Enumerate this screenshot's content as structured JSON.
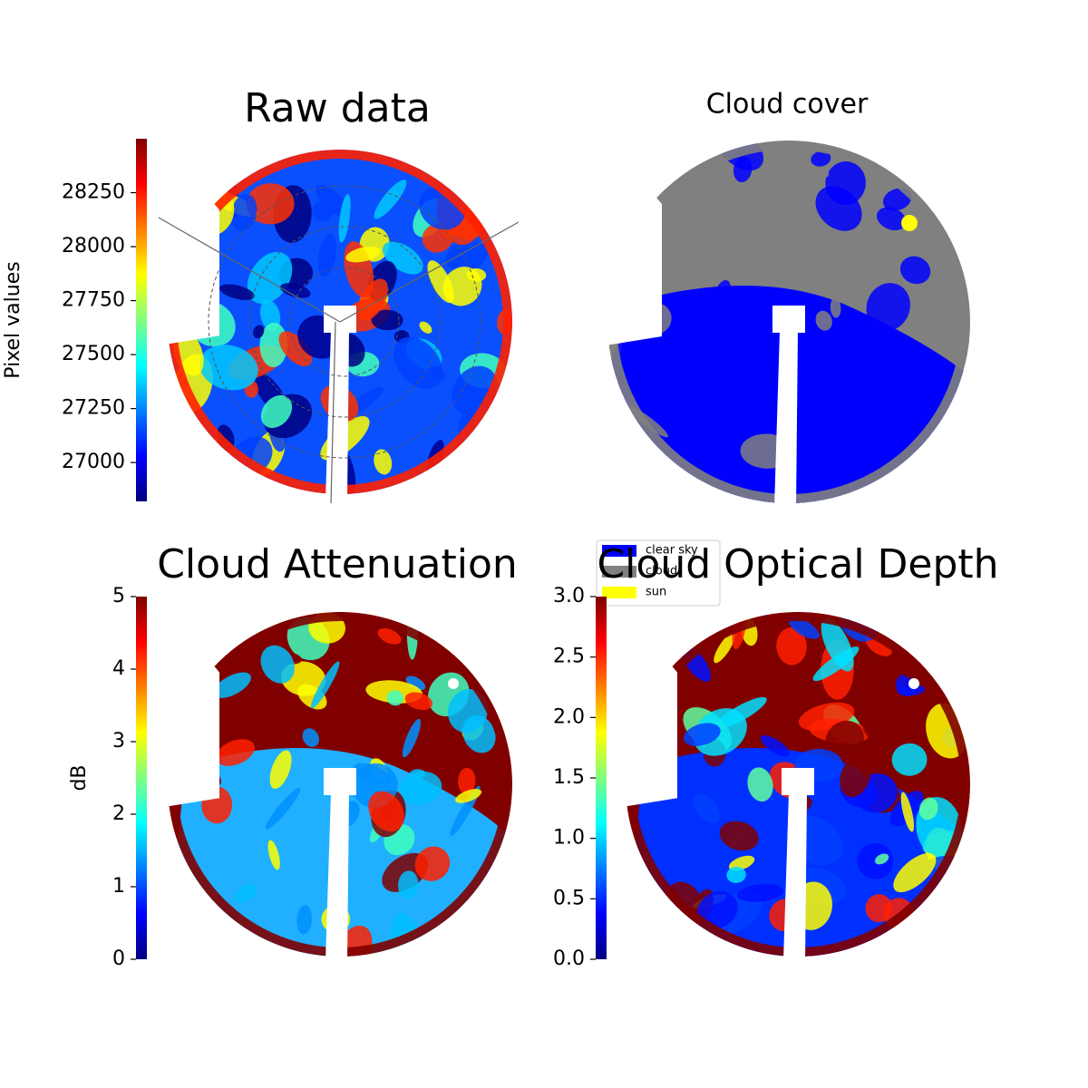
{
  "chart_data": [
    {
      "type": "image",
      "title": "Raw data",
      "colorbar_label": "Pixel values",
      "colormap": "jet",
      "clim": [
        26820,
        28500
      ],
      "ticks": [
        27000,
        27250,
        27500,
        27750,
        28000,
        28250
      ]
    },
    {
      "type": "classes",
      "title": "Cloud cover",
      "classes": [
        {
          "name": "clear sky",
          "color": "#0000ff"
        },
        {
          "name": "cloud",
          "color": "#808080"
        },
        {
          "name": "sun",
          "color": "#ffff00"
        }
      ]
    },
    {
      "type": "image",
      "title": "Cloud Attenuation",
      "colorbar_label": "dB",
      "colormap": "jet",
      "clim": [
        0,
        5
      ],
      "ticks": [
        0,
        1,
        2,
        3,
        4,
        5
      ]
    },
    {
      "type": "image",
      "title": "Cloud Optical Depth",
      "colormap": "jet",
      "clim": [
        0,
        3
      ],
      "ticks": [
        {
          "value": 0,
          "label": "0.0"
        },
        0.5,
        {
          "value": 1,
          "label": "1.0"
        },
        1.5,
        {
          "value": 2,
          "label": "2.0"
        },
        2.5,
        {
          "value": 3,
          "label": "3.0"
        }
      ]
    }
  ]
}
